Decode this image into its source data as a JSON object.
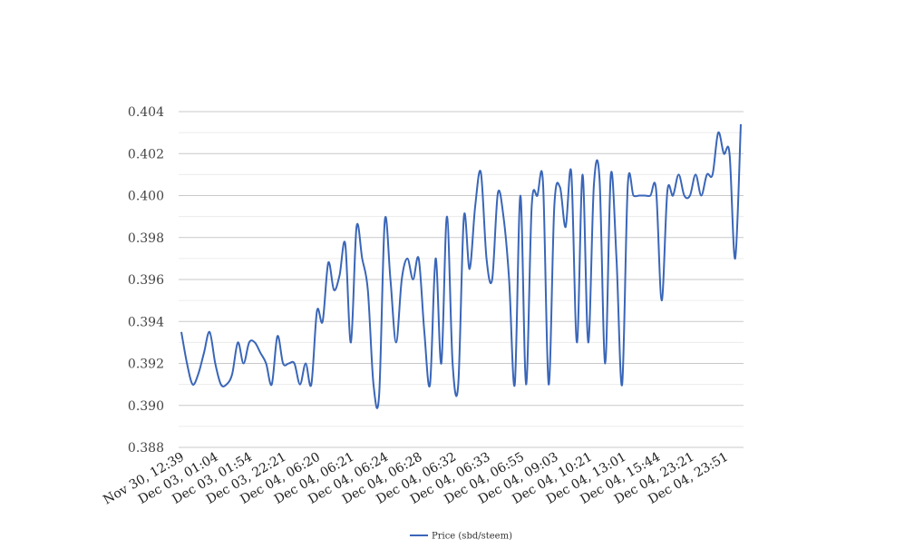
{
  "chart_data": {
    "type": "line",
    "title": "",
    "xlabel": "",
    "ylabel": "",
    "ylim": [
      0.388,
      0.404
    ],
    "yticks": [
      "0.388",
      "0.390",
      "0.392",
      "0.394",
      "0.396",
      "0.398",
      "0.400",
      "0.402",
      "0.404"
    ],
    "x_tick_labels": [
      "Nov 30, 12:39",
      "Dec 03, 01:04",
      "Dec 03, 01:54",
      "Dec 03, 22:21",
      "Dec 04, 06:20",
      "Dec 04, 06:21",
      "Dec 04, 06:24",
      "Dec 04, 06:28",
      "Dec 04, 06:32",
      "Dec 04, 06:33",
      "Dec 04, 06:55",
      "Dec 04, 09:03",
      "Dec 04, 10:21",
      "Dec 04, 13:01",
      "Dec 04, 15:44",
      "Dec 04, 23:21",
      "Dec 04, 23:51"
    ],
    "grid": true,
    "legend_position": "bottom",
    "series": [
      {
        "name": "Price (sbd/steem)",
        "color": "#3a66b8",
        "values": [
          0.3935,
          0.392,
          0.391,
          0.3915,
          0.3925,
          0.3935,
          0.392,
          0.391,
          0.391,
          0.3915,
          0.393,
          0.392,
          0.393,
          0.393,
          0.3925,
          0.392,
          0.391,
          0.3933,
          0.392,
          0.392,
          0.392,
          0.391,
          0.392,
          0.391,
          0.3945,
          0.394,
          0.3968,
          0.3955,
          0.3962,
          0.3977,
          0.393,
          0.3985,
          0.397,
          0.3955,
          0.391,
          0.3905,
          0.3988,
          0.396,
          0.393,
          0.396,
          0.397,
          0.396,
          0.397,
          0.3935,
          0.391,
          0.397,
          0.392,
          0.399,
          0.392,
          0.391,
          0.399,
          0.3965,
          0.3995,
          0.4011,
          0.397,
          0.396,
          0.4001,
          0.399,
          0.396,
          0.391,
          0.4,
          0.391,
          0.3995,
          0.4,
          0.4006,
          0.391,
          0.3995,
          0.4004,
          0.3985,
          0.4011,
          0.393,
          0.401,
          0.393,
          0.4005,
          0.4008,
          0.392,
          0.401,
          0.397,
          0.391,
          0.4005,
          0.4,
          0.4,
          0.4,
          0.4,
          0.4003,
          0.395,
          0.4002,
          0.4,
          0.401,
          0.4,
          0.4,
          0.401,
          0.4,
          0.401,
          0.401,
          0.403,
          0.402,
          0.402,
          0.397,
          0.4034
        ]
      }
    ]
  }
}
